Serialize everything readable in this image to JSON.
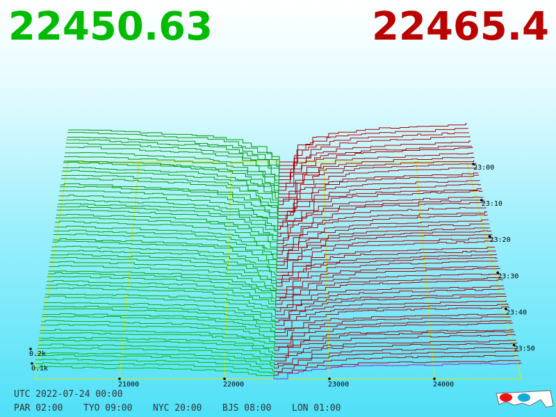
{
  "header": {
    "bid_price": 22450.63,
    "ask_price": 22465.4
  },
  "price_ticks": [
    21000,
    22000,
    23000,
    24000
  ],
  "time_ticks": [
    "23:00",
    "23:10",
    "23:20",
    "23:30",
    "23:40",
    "23:50"
  ],
  "depth_ticks": [
    "0.2k",
    "0.1k"
  ],
  "footer": {
    "utc": "UTC 2022-07-24 00:00",
    "zones": [
      "PAR 02:00",
      "TYO 09:00",
      "NYC 20:00",
      "BJS 08:00",
      "LON 01:00"
    ]
  }
}
